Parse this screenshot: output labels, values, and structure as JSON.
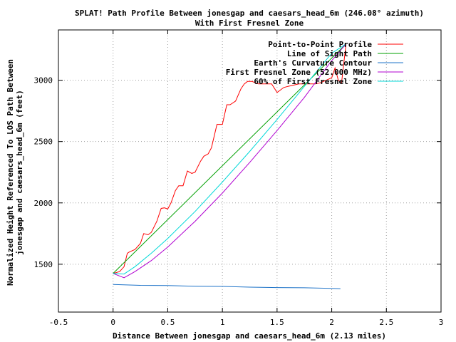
{
  "chart_data": {
    "type": "line",
    "title": "SPLAT! Path Profile Between jonesgap and caesars_head_6m (246.08° azimuth)",
    "subtitle": "With First Fresnel Zone",
    "xlabel": "Distance Between jonesgap and caesars_head_6m (2.13 miles)",
    "ylabel": "Normalized Height Referenced To LOS Path Between jonesgap and caesars_head_6m (feet)",
    "ylabel_lines": [
      "Normalized Height Referenced To LOS Path Between",
      "jonesgap and caesars_head_6m (feet)"
    ],
    "xlim": [
      -0.5,
      3
    ],
    "ylim": [
      1110,
      3410
    ],
    "xticks": [
      -0.5,
      0,
      0.5,
      1,
      1.5,
      2,
      2.5,
      3
    ],
    "xtick_labels": [
      "-0.5",
      "0",
      "0.5",
      "1",
      "1.5",
      "2",
      "2.5",
      "3"
    ],
    "yticks": [
      1500,
      2000,
      2500,
      3000
    ],
    "ytick_labels": [
      "1500",
      "2000",
      "2500",
      "3000"
    ],
    "grid": true,
    "legend_position": "top-right",
    "series": [
      {
        "name": "Point-to-Point Profile",
        "color": "#ff0000",
        "x": [
          0,
          0.06,
          0.1,
          0.13,
          0.15,
          0.2,
          0.25,
          0.28,
          0.32,
          0.35,
          0.4,
          0.44,
          0.47,
          0.5,
          0.53,
          0.57,
          0.6,
          0.64,
          0.68,
          0.72,
          0.75,
          0.8,
          0.83,
          0.87,
          0.9,
          0.95,
          1.0,
          1.04,
          1.07,
          1.12,
          1.17,
          1.2,
          1.23,
          1.27,
          1.33,
          1.37,
          1.4,
          1.45,
          1.5,
          1.53,
          1.56,
          1.6,
          1.65,
          1.7,
          1.75,
          1.8,
          1.85,
          1.9,
          1.95,
          2.0,
          2.03,
          2.06,
          2.09,
          2.13
        ],
        "y": [
          1425,
          1440,
          1480,
          1590,
          1600,
          1620,
          1670,
          1750,
          1740,
          1760,
          1850,
          1955,
          1960,
          1950,
          2000,
          2100,
          2140,
          2140,
          2260,
          2240,
          2250,
          2340,
          2380,
          2400,
          2450,
          2640,
          2640,
          2800,
          2800,
          2830,
          2930,
          2970,
          2990,
          2990,
          2970,
          2970,
          2970,
          2970,
          2900,
          2920,
          2940,
          2950,
          2960,
          2970,
          2970,
          2970,
          2970,
          2980,
          3000,
          3020,
          3100,
          3000,
          2980,
          3290
        ]
      },
      {
        "name": "Line of Sight Path",
        "color": "#00a000",
        "x": [
          0,
          2.13
        ],
        "y": [
          1425,
          3295
        ]
      },
      {
        "name": "Earth's Curvature Contour",
        "color": "#1e73c8",
        "x": [
          0,
          0.25,
          0.5,
          0.75,
          1.0,
          1.25,
          1.5,
          1.75,
          2.0,
          2.08
        ],
        "y": [
          1335,
          1328,
          1326,
          1321,
          1319,
          1313,
          1310,
          1308,
          1303,
          1300
        ]
      },
      {
        "name": "First Fresnel Zone (52.000 MHz)",
        "color": "#b000d0",
        "x": [
          0,
          0.1,
          0.2,
          0.35,
          0.5,
          0.75,
          1.0,
          1.25,
          1.5,
          1.75,
          2.0,
          2.13
        ],
        "y": [
          1425,
          1390,
          1440,
          1530,
          1640,
          1850,
          2080,
          2330,
          2590,
          2860,
          3160,
          3295
        ]
      },
      {
        "name": "60% of First Fresnel Zone",
        "color": "#00d8d8",
        "x": [
          0,
          0.1,
          0.2,
          0.35,
          0.5,
          0.75,
          1.0,
          1.25,
          1.5,
          1.75,
          2.0,
          2.13
        ],
        "y": [
          1425,
          1420,
          1480,
          1590,
          1710,
          1930,
          2170,
          2420,
          2680,
          2950,
          3220,
          3295
        ]
      }
    ]
  }
}
